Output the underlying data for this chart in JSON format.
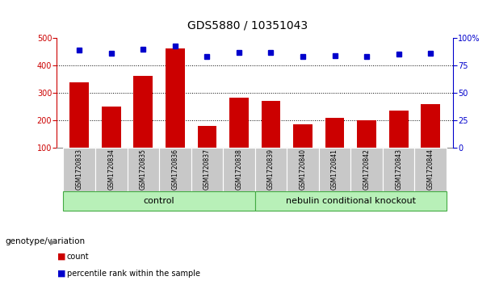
{
  "title": "GDS5880 / 10351043",
  "samples": [
    "GSM1720833",
    "GSM1720834",
    "GSM1720835",
    "GSM1720836",
    "GSM1720837",
    "GSM1720838",
    "GSM1720839",
    "GSM1720840",
    "GSM1720841",
    "GSM1720842",
    "GSM1720843",
    "GSM1720844"
  ],
  "counts": [
    338,
    250,
    362,
    462,
    178,
    283,
    271,
    184,
    207,
    200,
    236,
    259
  ],
  "percentiles": [
    89,
    86,
    90,
    93,
    83,
    87,
    87,
    83,
    84,
    83,
    85,
    86
  ],
  "groups": [
    {
      "label": "control",
      "start": 0,
      "end": 6
    },
    {
      "label": "nebulin conditional knockout",
      "start": 6,
      "end": 12
    }
  ],
  "bar_color": "#cc0000",
  "dot_color": "#0000cc",
  "ylim_left": [
    100,
    500
  ],
  "ylim_right": [
    0,
    100
  ],
  "yticks_left": [
    100,
    200,
    300,
    400,
    500
  ],
  "yticks_right": [
    0,
    25,
    50,
    75,
    100
  ],
  "grid_values": [
    200,
    300,
    400
  ],
  "bg_color": "#ffffff",
  "axis_color_left": "#cc0000",
  "axis_color_right": "#0000cc",
  "group_box_color": "#b8f0b8",
  "sample_box_color": "#c8c8c8",
  "genotype_label": "genotype/variation",
  "legend_count_label": "count",
  "legend_pct_label": "percentile rank within the sample",
  "title_fontsize": 10,
  "tick_fontsize": 7,
  "sample_fontsize": 5.5,
  "group_fontsize": 8,
  "legend_fontsize": 7,
  "genotype_fontsize": 7.5
}
